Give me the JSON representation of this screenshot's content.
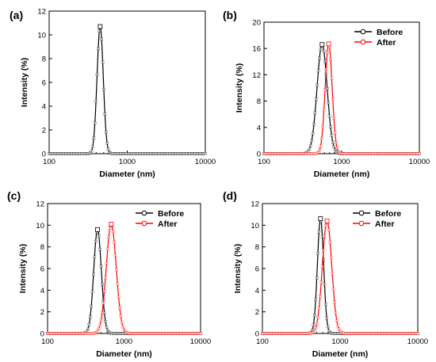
{
  "chart_data": [
    {
      "type": "line",
      "panel_label": "(a)",
      "xlabel": "Diameter (nm)",
      "ylabel": "Intensity (%)",
      "xscale": "log",
      "xlim": [
        100,
        10000
      ],
      "ylim": [
        0,
        12
      ],
      "xticks": [
        100,
        1000,
        10000
      ],
      "xtick_labels": [
        "100",
        "1000",
        "10000"
      ],
      "yticks": [
        0,
        2,
        4,
        6,
        8,
        10,
        12
      ],
      "legend": "none",
      "series": [
        {
          "color": "#000000",
          "peak_x": 450,
          "peak_y": 10.7,
          "log_sigma": 0.04
        }
      ]
    },
    {
      "type": "line",
      "panel_label": "(b)",
      "xlabel": "Diameter (nm)",
      "ylabel": "Intensity (%)",
      "xscale": "log",
      "xlim": [
        100,
        10000
      ],
      "ylim": [
        0,
        20
      ],
      "xticks": [
        100,
        1000,
        10000
      ],
      "xtick_labels": [
        "100",
        "1000",
        "10000"
      ],
      "yticks": [
        0,
        4,
        8,
        12,
        16,
        20
      ],
      "legend": "top-right",
      "series": [
        {
          "name": "Before",
          "color": "#000000",
          "peak_x": 560,
          "peak_y": 16.6,
          "log_sigma": 0.065
        },
        {
          "name": "After",
          "color": "#ff0000",
          "peak_x": 680,
          "peak_y": 16.7,
          "log_sigma": 0.045
        }
      ]
    },
    {
      "type": "line",
      "panel_label": "(c)",
      "xlabel": "Diameter (nm)",
      "ylabel": "Intensity (%)",
      "xscale": "log",
      "xlim": [
        100,
        10000
      ],
      "ylim": [
        0,
        12
      ],
      "xticks": [
        100,
        1000,
        10000
      ],
      "xtick_labels": [
        "100",
        "1000",
        "10000"
      ],
      "yticks": [
        0,
        2,
        4,
        6,
        8,
        10,
        12
      ],
      "legend": "top-right",
      "series": [
        {
          "name": "Before",
          "color": "#000000",
          "peak_x": 450,
          "peak_y": 9.6,
          "log_sigma": 0.05
        },
        {
          "name": "After",
          "color": "#ff0000",
          "peak_x": 680,
          "peak_y": 10.1,
          "log_sigma": 0.065
        }
      ]
    },
    {
      "type": "line",
      "panel_label": "(d)",
      "xlabel": "Diameter (nm)",
      "ylabel": "Intensity (%)",
      "xscale": "log",
      "xlim": [
        100,
        10000
      ],
      "ylim": [
        0,
        12
      ],
      "xticks": [
        100,
        1000,
        10000
      ],
      "xtick_labels": [
        "100",
        "1000",
        "10000"
      ],
      "yticks": [
        0,
        2,
        4,
        6,
        8,
        10,
        12
      ],
      "legend": "top-right",
      "series": [
        {
          "name": "Before",
          "color": "#000000",
          "peak_x": 560,
          "peak_y": 10.6,
          "log_sigma": 0.04
        },
        {
          "name": "After",
          "color": "#ff0000",
          "peak_x": 680,
          "peak_y": 10.4,
          "log_sigma": 0.06
        }
      ]
    }
  ]
}
